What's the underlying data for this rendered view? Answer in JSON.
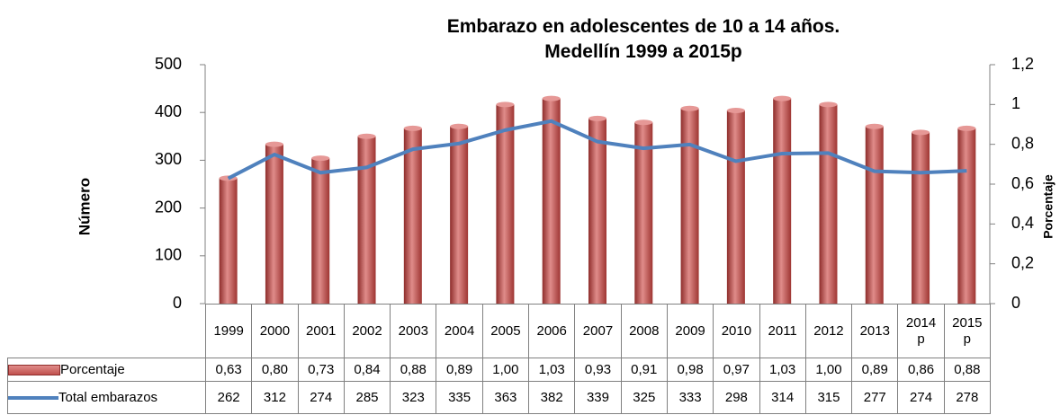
{
  "chart_data": {
    "type": "bar-line",
    "title": [
      "Embarazo en adolescentes de 10 a 14 años.",
      "Medellín 1999 a 2015p"
    ],
    "ylabel": "Número",
    "y2label": "Porcentaje",
    "categories": [
      "1999",
      "2000",
      "2001",
      "2002",
      "2003",
      "2004",
      "2005",
      "2006",
      "2007",
      "2008",
      "2009",
      "2010",
      "2011",
      "2012",
      "2013",
      "2014 p",
      "2015 p"
    ],
    "ylim": [
      0,
      500
    ],
    "yticks": [
      0,
      100,
      200,
      300,
      400,
      500
    ],
    "y2lim": [
      0,
      1.2
    ],
    "y2ticks": [
      {
        "value": 0,
        "label": "0"
      },
      {
        "value": 0.2,
        "label": "0,2"
      },
      {
        "value": 0.4,
        "label": "0,4"
      },
      {
        "value": 0.6,
        "label": "0,6"
      },
      {
        "value": 0.8,
        "label": "0,8"
      },
      {
        "value": 1,
        "label": "1"
      },
      {
        "value": 1.2,
        "label": "1,2"
      }
    ],
    "series": [
      {
        "name": "Porcentaje",
        "type": "bar",
        "axis": "y2",
        "color": "#c0504d",
        "values": [
          0.63,
          0.8,
          0.73,
          0.84,
          0.88,
          0.89,
          1.0,
          1.03,
          0.93,
          0.91,
          0.98,
          0.97,
          1.03,
          1.0,
          0.89,
          0.86,
          0.88
        ],
        "value_labels": [
          "0,63",
          "0,80",
          "0,73",
          "0,84",
          "0,88",
          "0,89",
          "1,00",
          "1,03",
          "0,93",
          "0,91",
          "0,98",
          "0,97",
          "1,03",
          "1,00",
          "0,89",
          "0,86",
          "0,88"
        ]
      },
      {
        "name": "Total embarazos",
        "type": "line",
        "axis": "y",
        "color": "#4f81bd",
        "values": [
          262,
          312,
          274,
          285,
          323,
          335,
          363,
          382,
          339,
          325,
          333,
          298,
          314,
          315,
          277,
          274,
          278
        ]
      }
    ]
  }
}
